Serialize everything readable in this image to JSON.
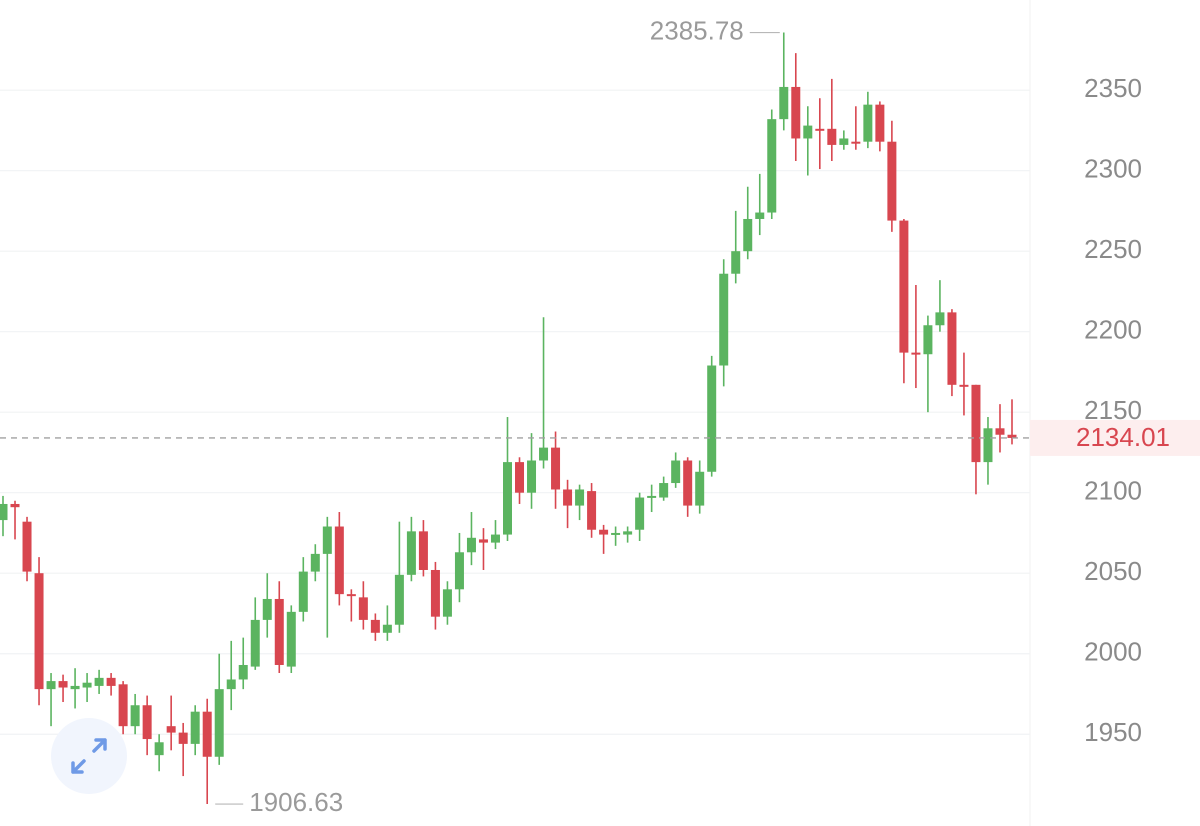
{
  "chart_data": {
    "type": "candlestick",
    "ylim": [
      1893,
      2406
    ],
    "yticks": [
      1950,
      2000,
      2050,
      2100,
      2150,
      2200,
      2250,
      2300,
      2350
    ],
    "grid": true,
    "up_color": "#5bb460",
    "down_color": "#d8464f",
    "open": [
      2083,
      2093,
      2082,
      2050,
      1978,
      1983,
      1978,
      1979,
      1980,
      1985,
      1981,
      1955,
      1968,
      1937,
      1955,
      1951,
      1944,
      1964,
      1936,
      1978,
      1984,
      1992,
      2021,
      2034,
      1992,
      2026,
      2051,
      2062,
      2079,
      2037,
      2035,
      2021,
      2013,
      2018,
      2049,
      2076,
      2052,
      2023,
      2040,
      2063,
      2071,
      2069,
      2074,
      2119,
      2100,
      2120,
      2128,
      2102,
      2092,
      2101,
      2077,
      2074,
      2074,
      2077,
      2097,
      2097,
      2106,
      2120,
      2092,
      2113,
      2179,
      2236,
      2250,
      2270,
      2274,
      2332,
      2352,
      2320,
      2326,
      2326,
      2316,
      2318,
      2318,
      2341,
      2318,
      2269,
      2187,
      2186,
      2204,
      2212,
      2167,
      2167,
      2119,
      2140,
      2136
    ],
    "high": [
      2098,
      2095,
      2085,
      2060,
      1988,
      1987,
      1991,
      1988,
      1990,
      1988,
      1983,
      1975,
      1974,
      1950,
      1974,
      1957,
      1968,
      1972,
      2000,
      2008,
      2010,
      2035,
      2050,
      2045,
      2030,
      2060,
      2068,
      2085,
      2088,
      2040,
      2045,
      2025,
      2030,
      2082,
      2085,
      2083,
      2057,
      2045,
      2075,
      2088,
      2078,
      2083,
      2147,
      2122,
      2137,
      2209,
      2138,
      2108,
      2105,
      2106,
      2080,
      2079,
      2079,
      2100,
      2105,
      2110,
      2125,
      2122,
      2120,
      2185,
      2245,
      2275,
      2290,
      2298,
      2338,
      2385.78,
      2373,
      2340,
      2345,
      2357,
      2325,
      2340,
      2349,
      2343,
      2331,
      2270,
      2229,
      2210,
      2232,
      2214,
      2187,
      2167,
      2147,
      2155,
      2158
    ],
    "low": [
      2073,
      2071,
      2045,
      1968,
      1955,
      1970,
      1966,
      1970,
      1975,
      1974,
      1950,
      1950,
      1937,
      1927,
      1940,
      1924,
      1937,
      1906.63,
      1931,
      1965,
      1978,
      1990,
      2010,
      1988,
      1988,
      2020,
      2045,
      2010,
      2030,
      2020,
      2015,
      2008,
      2008,
      2013,
      2045,
      2048,
      2015,
      2018,
      2032,
      2055,
      2052,
      2065,
      2070,
      2093,
      2090,
      2115,
      2090,
      2078,
      2083,
      2072,
      2062,
      2067,
      2069,
      2070,
      2088,
      2095,
      2103,
      2085,
      2087,
      2110,
      2166,
      2230,
      2245,
      2260,
      2270,
      2325,
      2306,
      2297,
      2301,
      2306,
      2313,
      2313,
      2314,
      2312,
      2262,
      2168,
      2165,
      2150,
      2200,
      2160,
      2148,
      2099,
      2105,
      2125,
      2130
    ],
    "close": [
      2093,
      2091,
      2051,
      1978,
      1983,
      1979,
      1980,
      1982,
      1985,
      1980,
      1955,
      1968,
      1947,
      1945,
      1951,
      1944,
      1964,
      1936,
      1978,
      1984,
      1993,
      2021,
      2034,
      1993,
      2026,
      2051,
      2062,
      2079,
      2037,
      2036,
      2021,
      2013,
      2018,
      2049,
      2076,
      2052,
      2023,
      2040,
      2063,
      2072,
      2069,
      2074,
      2119,
      2100,
      2120,
      2128,
      2102,
      2092,
      2102,
      2077,
      2074,
      2075,
      2076,
      2097,
      2098,
      2106,
      2120,
      2092,
      2113,
      2179,
      2236,
      2250,
      2270,
      2274,
      2332,
      2352,
      2320,
      2328,
      2325,
      2316,
      2320,
      2317,
      2341,
      2318,
      2269,
      2187,
      2186,
      2204,
      2212,
      2167,
      2166,
      2119,
      2140,
      2136,
      2134.01
    ]
  }
}
